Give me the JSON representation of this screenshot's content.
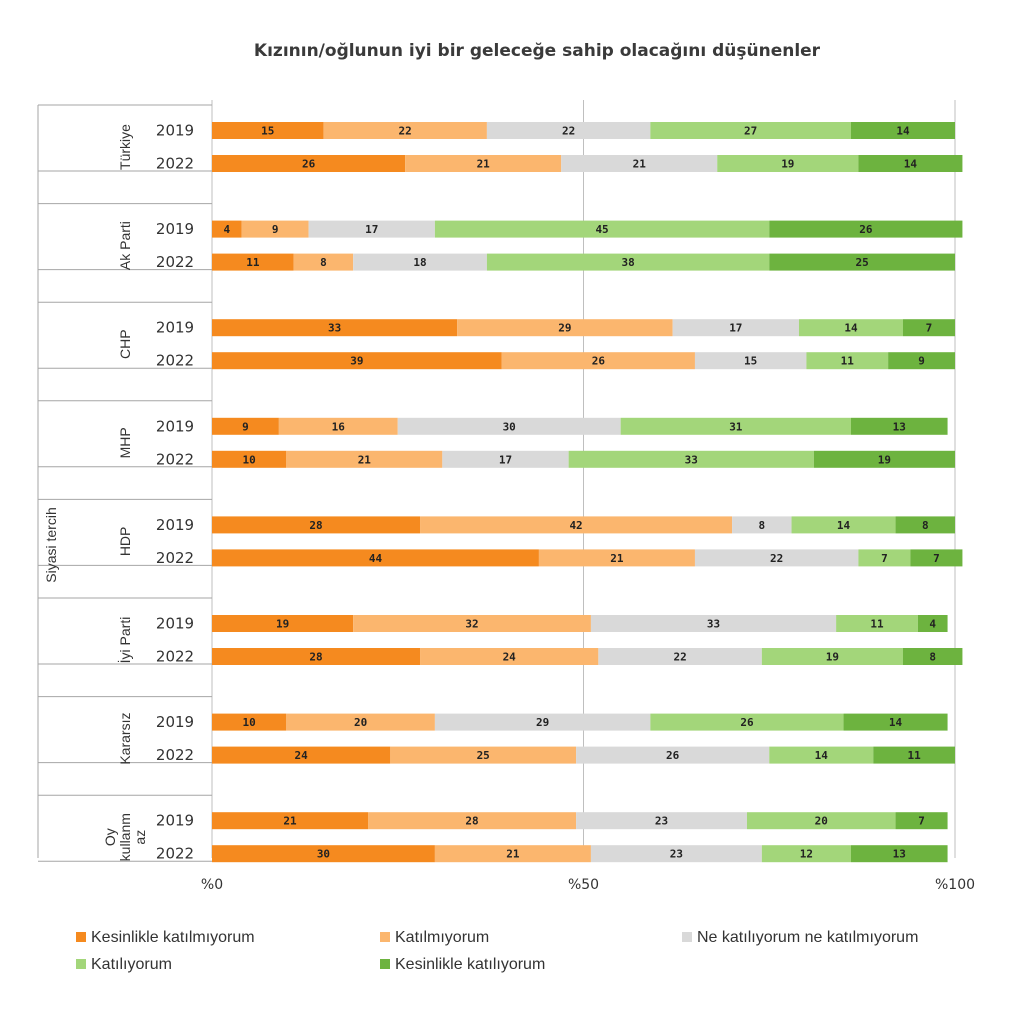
{
  "chart_data": {
    "type": "bar",
    "orientation": "horizontal",
    "stacked": true,
    "title": "Kızının/oğlunun iyi bir geleceğe sahip olacağını düşünenler",
    "ylabel": "Siyasi tercih",
    "xlim": [
      0,
      100
    ],
    "xticks": [
      "%0",
      "%50",
      "%100"
    ],
    "legend_position": "bottom",
    "series": [
      {
        "name": "Kesinlikle katılmıyorum",
        "color": "#f58a1f"
      },
      {
        "name": "Katılmıyorum",
        "color": "#fbb66e"
      },
      {
        "name": "Ne katılıyorum ne katılmıyorum",
        "color": "#d9d9d9"
      },
      {
        "name": "Katılıyorum",
        "color": "#a3d67a"
      },
      {
        "name": "Kesinlikle katılıyorum",
        "color": "#6db33f"
      }
    ],
    "groups": [
      {
        "label": [
          "Türkiye"
        ],
        "rows": [
          {
            "year": "2019",
            "values": [
              15,
              22,
              22,
              27,
              14
            ]
          },
          {
            "year": "2022",
            "values": [
              26,
              21,
              21,
              19,
              14
            ]
          }
        ]
      },
      {
        "label": [
          "Ak Parti"
        ],
        "rows": [
          {
            "year": "2019",
            "values": [
              4,
              9,
              17,
              45,
              26
            ]
          },
          {
            "year": "2022",
            "values": [
              11,
              8,
              18,
              38,
              25
            ]
          }
        ]
      },
      {
        "label": [
          "CHP"
        ],
        "rows": [
          {
            "year": "2019",
            "values": [
              33,
              29,
              17,
              14,
              7
            ]
          },
          {
            "year": "2022",
            "values": [
              39,
              26,
              15,
              11,
              9
            ]
          }
        ]
      },
      {
        "label": [
          "MHP"
        ],
        "rows": [
          {
            "year": "2019",
            "values": [
              9,
              16,
              30,
              31,
              13
            ]
          },
          {
            "year": "2022",
            "values": [
              10,
              21,
              17,
              33,
              19
            ]
          }
        ]
      },
      {
        "label": [
          "HDP"
        ],
        "rows": [
          {
            "year": "2019",
            "values": [
              28,
              42,
              8,
              14,
              8
            ]
          },
          {
            "year": "2022",
            "values": [
              44,
              21,
              22,
              7,
              7
            ]
          }
        ]
      },
      {
        "label": [
          "İyi Parti"
        ],
        "rows": [
          {
            "year": "2019",
            "values": [
              19,
              32,
              33,
              11,
              4
            ]
          },
          {
            "year": "2022",
            "values": [
              28,
              24,
              22,
              19,
              8
            ]
          }
        ]
      },
      {
        "label": [
          "Kararsız"
        ],
        "rows": [
          {
            "year": "2019",
            "values": [
              10,
              20,
              29,
              26,
              14
            ]
          },
          {
            "year": "2022",
            "values": [
              24,
              25,
              26,
              14,
              11
            ]
          }
        ]
      },
      {
        "label": [
          "Oy",
          "kullanm",
          "az"
        ],
        "rows": [
          {
            "year": "2019",
            "values": [
              21,
              28,
              23,
              20,
              7
            ]
          },
          {
            "year": "2022",
            "values": [
              30,
              21,
              23,
              12,
              13
            ]
          }
        ]
      }
    ]
  }
}
